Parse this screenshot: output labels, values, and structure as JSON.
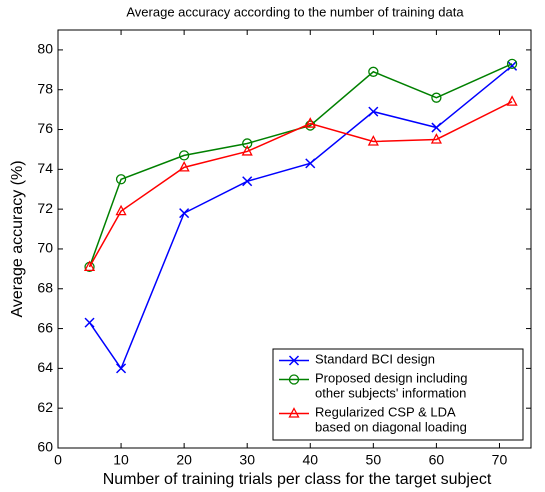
{
  "chart_data": {
    "type": "line",
    "title": "Average accuracy according to the number of training data",
    "x_label": "Number of training trials per class for the target subject",
    "y_label": "Average accuracy (%)",
    "x": [
      5,
      10,
      20,
      30,
      40,
      50,
      60,
      72
    ],
    "series": [
      {
        "name": "Standard BCI design",
        "color": "#0000ff",
        "marker": "x",
        "values": [
          66.3,
          64.0,
          71.8,
          73.4,
          74.3,
          76.9,
          76.1,
          79.2
        ]
      },
      {
        "name": "Proposed design including\nother subjects' information",
        "color": "#008000",
        "marker": "o",
        "values": [
          69.1,
          73.5,
          74.7,
          75.3,
          76.2,
          78.9,
          77.6,
          79.3
        ]
      },
      {
        "name": "Regularized CSP & LDA\nbased on diagonal loading",
        "color": "#ff0000",
        "marker": "^",
        "values": [
          69.1,
          71.9,
          74.1,
          74.9,
          76.3,
          75.4,
          75.5,
          77.4
        ]
      }
    ],
    "xlim": [
      0,
      75
    ],
    "xticks": [
      0,
      10,
      20,
      30,
      40,
      50,
      60,
      70
    ],
    "ylim": [
      60,
      81
    ],
    "yticks": [
      60,
      62,
      64,
      66,
      68,
      70,
      72,
      74,
      76,
      78,
      80
    ],
    "grid": false,
    "legend": "lower right"
  }
}
